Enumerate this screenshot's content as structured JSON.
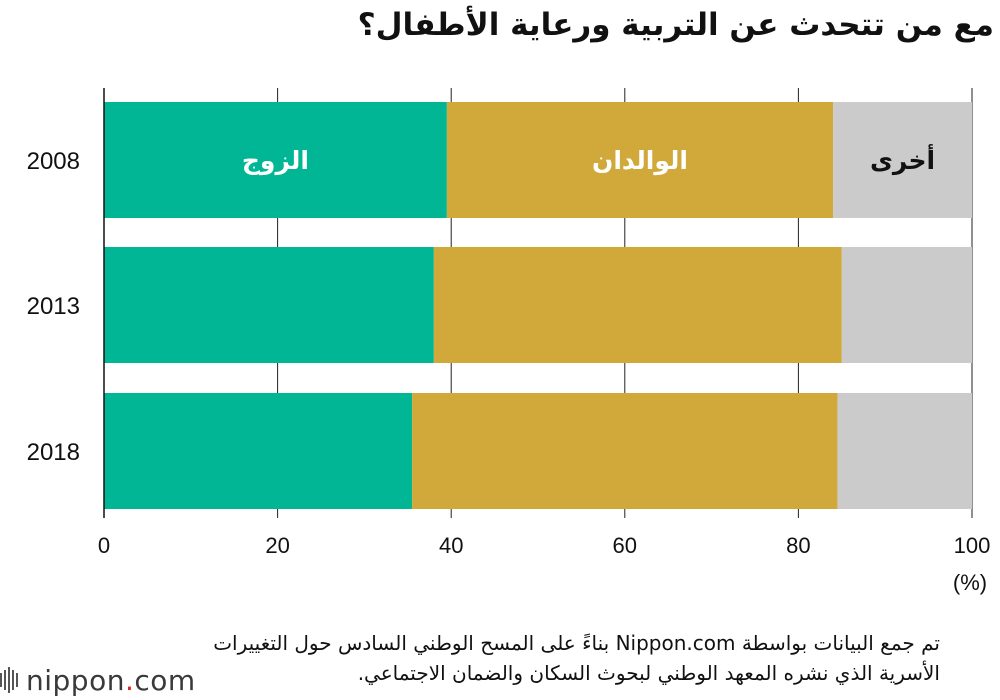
{
  "title": "مع من تتحدث عن التربية ورعاية الأطفال؟",
  "colors": {
    "spouse": "#00b694",
    "parents": "#d0a93a",
    "other": "#cbcbcb",
    "axis": "#111111"
  },
  "chart_data": {
    "type": "bar",
    "orientation": "horizontal",
    "stacked": true,
    "title": "مع من تتحدث عن التربية ورعاية الأطفال؟",
    "categories": [
      "2008",
      "2013",
      "2018"
    ],
    "series": [
      {
        "name": "الزوج",
        "key": "spouse",
        "values": [
          39.5,
          38.0,
          35.5
        ]
      },
      {
        "name": "الوالدان",
        "key": "parents",
        "values": [
          44.5,
          47.0,
          49.0
        ]
      },
      {
        "name": "أخرى",
        "key": "other",
        "values": [
          16.0,
          15.0,
          15.5
        ]
      }
    ],
    "series_labels_shown_on_row": "2008",
    "xlim": [
      0,
      100
    ],
    "xticks": [
      0,
      20,
      40,
      60,
      80,
      100
    ],
    "xunit": "(%)",
    "grid": true
  },
  "source_text": "تم جمع البيانات بواسطة Nippon.com بناءً على المسح الوطني السادس حول التغييرات الأسرية الذي نشره المعهد الوطني لبحوث السكان والضمان الاجتماعي.",
  "logo": {
    "name": "nippon",
    "dot": ".",
    "tld": "com"
  }
}
